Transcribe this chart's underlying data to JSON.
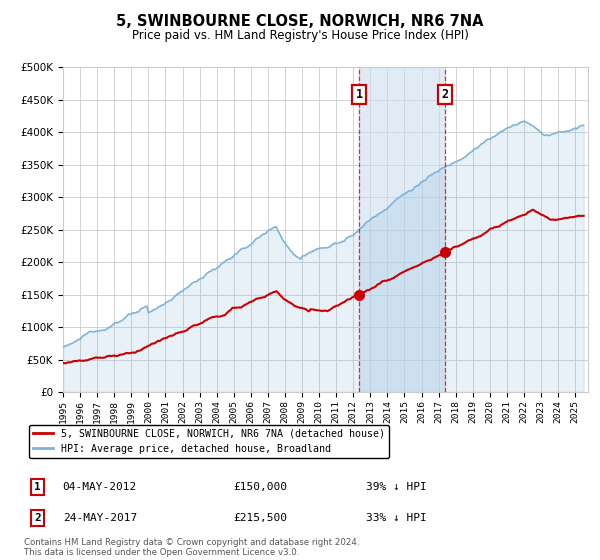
{
  "title": "5, SWINBOURNE CLOSE, NORWICH, NR6 7NA",
  "subtitle": "Price paid vs. HM Land Registry's House Price Index (HPI)",
  "background_color": "#ffffff",
  "plot_bg_color": "#ffffff",
  "grid_color": "#cccccc",
  "hpi_color": "#7ab3d8",
  "hpi_fill_alpha": 0.18,
  "property_color": "#cc0000",
  "sale1_date": 2012.35,
  "sale1_price": 150000,
  "sale2_date": 2017.38,
  "sale2_price": 215500,
  "shade_color": "#c8dcf0",
  "legend_line1": "5, SWINBOURNE CLOSE, NORWICH, NR6 7NA (detached house)",
  "legend_line2": "HPI: Average price, detached house, Broadland",
  "note1_label": "1",
  "note1_date": "04-MAY-2012",
  "note1_price": "£150,000",
  "note1_pct": "39% ↓ HPI",
  "note2_label": "2",
  "note2_date": "24-MAY-2017",
  "note2_price": "£215,500",
  "note2_pct": "33% ↓ HPI",
  "footer": "Contains HM Land Registry data © Crown copyright and database right 2024.\nThis data is licensed under the Open Government Licence v3.0.",
  "ylim_max": 500000,
  "xlim_start": 1995.0,
  "xlim_end": 2025.75
}
